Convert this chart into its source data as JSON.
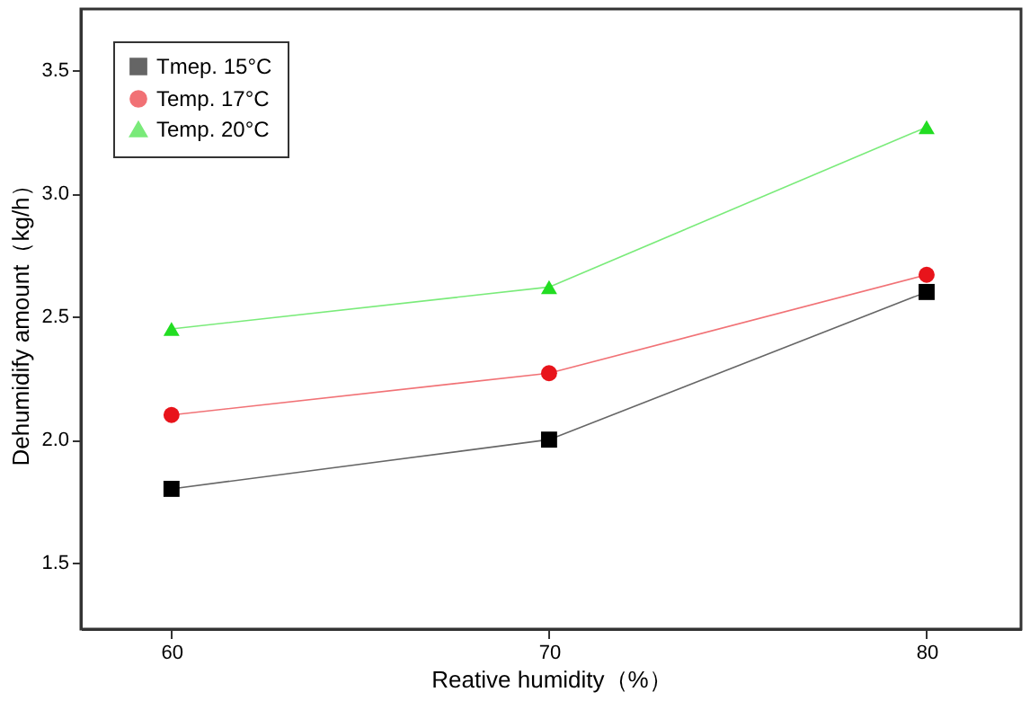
{
  "chart_data": {
    "type": "line",
    "xlabel": "Reative humidity（%）",
    "ylabel": "Dehumidify amount（kg/h）",
    "x": [
      60,
      70,
      80
    ],
    "xlim": [
      57.6,
      82.5
    ],
    "xticks": [
      60,
      70,
      80
    ],
    "ylim": [
      1.23,
      3.75
    ],
    "yticks": [
      1.5,
      {
        "value": 2,
        "label": "2.0"
      },
      2.5,
      {
        "value": 3,
        "label": "3.0"
      },
      3.5
    ],
    "series": [
      {
        "name": "Tmep. 15°C",
        "color": "#000000",
        "marker": "square",
        "values": [
          1.8,
          2.0,
          2.6
        ]
      },
      {
        "name": "Temp. 17°C",
        "color": "#e8141b",
        "marker": "circle",
        "values": [
          2.1,
          2.27,
          2.67
        ]
      },
      {
        "name": "Temp. 20°C",
        "color": "#22dd22",
        "marker": "triangle",
        "values": [
          2.45,
          2.62,
          3.27
        ]
      }
    ],
    "legend": "top left",
    "grid": false
  }
}
